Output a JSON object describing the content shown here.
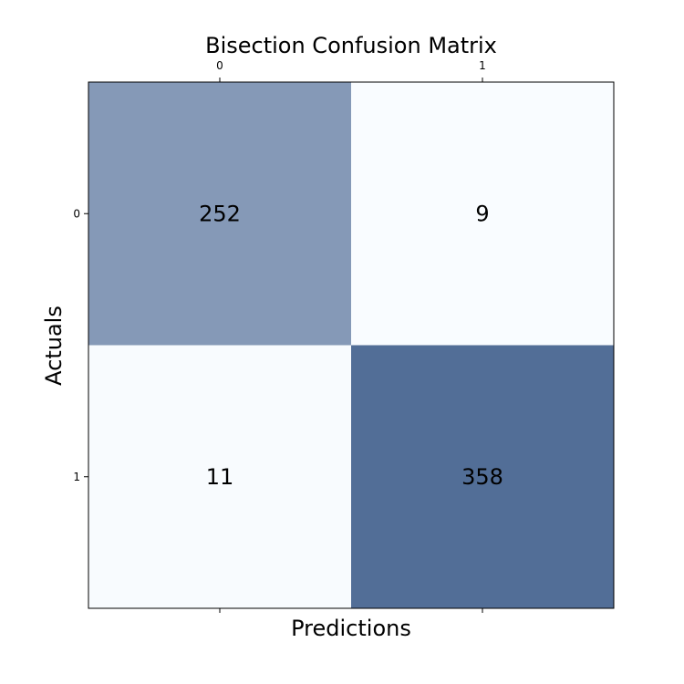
{
  "chart_data": {
    "type": "heatmap",
    "title": "Bisection Confusion Matrix",
    "xlabel": "Predictions",
    "ylabel": "Actuals",
    "x_categories": [
      "0",
      "1"
    ],
    "y_categories": [
      "0",
      "1"
    ],
    "values": [
      [
        252,
        9
      ],
      [
        11,
        358
      ]
    ],
    "x_ticks_position": "top",
    "grid": false,
    "colors": {
      "low": "#f7fbff",
      "high": "#08306b",
      "alpha": 0.7
    }
  }
}
